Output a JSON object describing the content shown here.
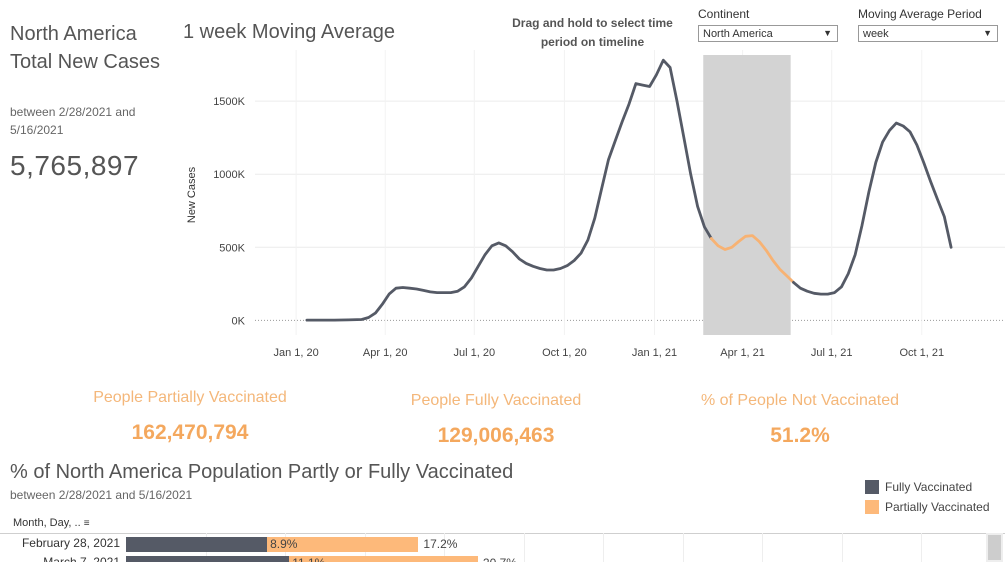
{
  "summary": {
    "title": "North America Total New Cases",
    "date_range": "between 2/28/2021 and 5/16/2021",
    "total": "5,765,897"
  },
  "controls": {
    "drag_hint": "Drag and hold to select time period on timeline",
    "continent_label": "Continent",
    "continent_value": "North America",
    "ma_label": "Moving Average Period",
    "ma_value": "week"
  },
  "kpis": [
    {
      "label": "People Partially Vaccinated",
      "value": "162,470,794"
    },
    {
      "label": "People Fully Vaccinated",
      "value": "129,006,463"
    },
    {
      "label": "% of People Not Vaccinated",
      "value": "51.2%"
    }
  ],
  "vax_section": {
    "title": "% of North America Population Partly or Fully Vaccinated",
    "date_range": "between 2/28/2021 and 5/16/2021",
    "column_header": "Month, Day, ..",
    "legend": [
      {
        "label": "Fully Vaccinated",
        "color": "#555a66"
      },
      {
        "label": "Partially Vaccinated",
        "color": "#fdb97a"
      }
    ]
  },
  "chart_data": [
    {
      "type": "line",
      "title": "1 week Moving Average",
      "xlabel": "",
      "ylabel": "New Cases",
      "x_ticks": [
        "Jan 1, 20",
        "Apr 1, 20",
        "Jul 1, 20",
        "Oct 1, 20",
        "Jan 1, 21",
        "Apr 1, 21",
        "Jul 1, 21",
        "Oct 1, 21"
      ],
      "y_ticks": [
        "0K",
        "500K",
        "1000K",
        "1500K"
      ],
      "ylim": [
        -100000,
        1850000
      ],
      "grid": true,
      "selected_range": [
        "2021-02-28",
        "2021-05-16"
      ],
      "highlight_color": "#f7b273",
      "line_color": "#555a66",
      "points": [
        [
          "2020-01-12",
          2000
        ],
        [
          "2020-01-26",
          2000
        ],
        [
          "2020-02-09",
          2000
        ],
        [
          "2020-02-23",
          3000
        ],
        [
          "2020-03-08",
          6000
        ],
        [
          "2020-03-15",
          20000
        ],
        [
          "2020-03-22",
          50000
        ],
        [
          "2020-03-29",
          110000
        ],
        [
          "2020-04-05",
          180000
        ],
        [
          "2020-04-12",
          220000
        ],
        [
          "2020-04-19",
          225000
        ],
        [
          "2020-04-26",
          220000
        ],
        [
          "2020-05-03",
          215000
        ],
        [
          "2020-05-10",
          205000
        ],
        [
          "2020-05-17",
          195000
        ],
        [
          "2020-05-24",
          190000
        ],
        [
          "2020-05-31",
          190000
        ],
        [
          "2020-06-07",
          190000
        ],
        [
          "2020-06-14",
          200000
        ],
        [
          "2020-06-21",
          230000
        ],
        [
          "2020-06-28",
          290000
        ],
        [
          "2020-07-05",
          370000
        ],
        [
          "2020-07-12",
          450000
        ],
        [
          "2020-07-19",
          510000
        ],
        [
          "2020-07-26",
          530000
        ],
        [
          "2020-08-02",
          510000
        ],
        [
          "2020-08-09",
          470000
        ],
        [
          "2020-08-16",
          420000
        ],
        [
          "2020-08-23",
          390000
        ],
        [
          "2020-08-30",
          370000
        ],
        [
          "2020-09-06",
          355000
        ],
        [
          "2020-09-13",
          345000
        ],
        [
          "2020-09-20",
          345000
        ],
        [
          "2020-09-27",
          355000
        ],
        [
          "2020-10-04",
          375000
        ],
        [
          "2020-10-11",
          410000
        ],
        [
          "2020-10-18",
          460000
        ],
        [
          "2020-10-25",
          550000
        ],
        [
          "2020-11-01",
          700000
        ],
        [
          "2020-11-08",
          900000
        ],
        [
          "2020-11-15",
          1100000
        ],
        [
          "2020-11-22",
          1230000
        ],
        [
          "2020-11-29",
          1360000
        ],
        [
          "2020-12-06",
          1480000
        ],
        [
          "2020-12-13",
          1620000
        ],
        [
          "2020-12-20",
          1610000
        ],
        [
          "2020-12-27",
          1600000
        ],
        [
          "2021-01-03",
          1680000
        ],
        [
          "2021-01-10",
          1780000
        ],
        [
          "2021-01-17",
          1730000
        ],
        [
          "2021-01-24",
          1500000
        ],
        [
          "2021-01-31",
          1250000
        ],
        [
          "2021-02-07",
          1000000
        ],
        [
          "2021-02-14",
          780000
        ],
        [
          "2021-02-21",
          640000
        ],
        [
          "2021-02-28",
          560000
        ],
        [
          "2021-03-07",
          510000
        ],
        [
          "2021-03-14",
          485000
        ],
        [
          "2021-03-21",
          500000
        ],
        [
          "2021-03-28",
          540000
        ],
        [
          "2021-04-04",
          575000
        ],
        [
          "2021-04-11",
          580000
        ],
        [
          "2021-04-18",
          540000
        ],
        [
          "2021-04-25",
          480000
        ],
        [
          "2021-05-02",
          410000
        ],
        [
          "2021-05-09",
          350000
        ],
        [
          "2021-05-16",
          305000
        ],
        [
          "2021-05-23",
          260000
        ],
        [
          "2021-05-30",
          220000
        ],
        [
          "2021-06-06",
          200000
        ],
        [
          "2021-06-13",
          185000
        ],
        [
          "2021-06-20",
          180000
        ],
        [
          "2021-06-27",
          180000
        ],
        [
          "2021-07-04",
          190000
        ],
        [
          "2021-07-11",
          230000
        ],
        [
          "2021-07-18",
          320000
        ],
        [
          "2021-07-25",
          450000
        ],
        [
          "2021-08-01",
          650000
        ],
        [
          "2021-08-08",
          880000
        ],
        [
          "2021-08-15",
          1080000
        ],
        [
          "2021-08-22",
          1220000
        ],
        [
          "2021-08-29",
          1300000
        ],
        [
          "2021-09-05",
          1350000
        ],
        [
          "2021-09-12",
          1330000
        ],
        [
          "2021-09-19",
          1290000
        ],
        [
          "2021-09-26",
          1200000
        ],
        [
          "2021-10-03",
          1080000
        ],
        [
          "2021-10-10",
          950000
        ],
        [
          "2021-10-17",
          830000
        ],
        [
          "2021-10-24",
          710000
        ],
        [
          "2021-10-31",
          500000
        ]
      ]
    },
    {
      "type": "bar",
      "stacked": true,
      "xlim": [
        0,
        100
      ],
      "series_names": [
        "Fully Vaccinated",
        "Partially Vaccinated"
      ],
      "rows": [
        {
          "label": "February 28, 2021",
          "fully": 8.3,
          "partial": 8.9,
          "partial_label": "8.9%",
          "total_label": "17.2%"
        },
        {
          "label": "March 7, 2021",
          "fully": 9.6,
          "partial": 11.1,
          "partial_label": "11.1%",
          "total_label": "20.7%"
        }
      ]
    }
  ]
}
